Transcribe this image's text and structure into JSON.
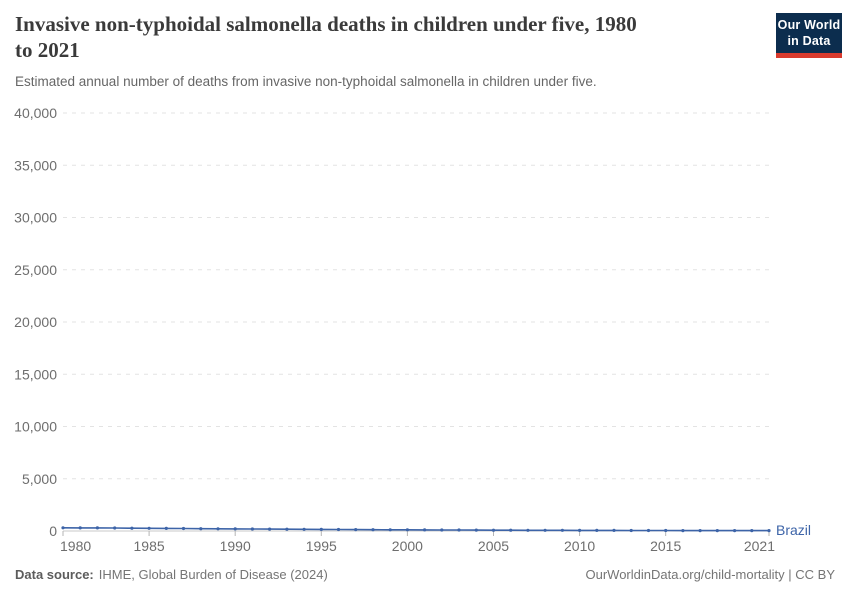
{
  "header": {
    "title_line1": "Invasive non-typhoidal salmonella deaths in children under five, 1980",
    "title_line2": "to 2021",
    "subtitle": "Estimated annual number of deaths from invasive non-typhoidal salmonella in children under five."
  },
  "logo": {
    "line1": "Our World",
    "line2": "in Data",
    "bg_color": "#0c2d4e",
    "stripe_color": "#d93a2d"
  },
  "footer": {
    "data_source_label": "Data source:",
    "data_source_value": "IHME, Global Burden of Disease (2024)",
    "credit": "OurWorldinData.org/child-mortality | CC BY"
  },
  "chart_data": {
    "type": "line",
    "title": "Invasive non-typhoidal salmonella deaths in children under five, 1980 to 2021",
    "subtitle": "Estimated annual number of deaths from invasive non-typhoidal salmonella in children under five.",
    "xlabel": "",
    "ylabel": "",
    "xlim": [
      1980,
      2021
    ],
    "ylim": [
      0,
      40000
    ],
    "yticks": [
      0,
      5000,
      10000,
      15000,
      20000,
      25000,
      30000,
      35000,
      40000
    ],
    "xticks": [
      1980,
      1985,
      1990,
      1995,
      2000,
      2005,
      2010,
      2015,
      2021
    ],
    "grid": "horizontal-dashed",
    "legend_position": "end-of-line",
    "colors": {
      "grid": "#e3e3e3",
      "zero_line": "#c9c9c9",
      "tick": "#b5b5b5",
      "axis_text": "#6e6e6e"
    },
    "series": [
      {
        "name": "Brazil",
        "color": "#3d64a8",
        "x": [
          1980,
          1981,
          1982,
          1983,
          1984,
          1985,
          1986,
          1987,
          1988,
          1989,
          1990,
          1991,
          1992,
          1993,
          1994,
          1995,
          1996,
          1997,
          1998,
          1999,
          2000,
          2001,
          2002,
          2003,
          2004,
          2005,
          2006,
          2007,
          2008,
          2009,
          2010,
          2011,
          2012,
          2013,
          2014,
          2015,
          2016,
          2017,
          2018,
          2019,
          2020,
          2021
        ],
        "values": [
          310,
          301,
          292,
          283,
          272,
          260,
          248,
          236,
          224,
          212,
          200,
          190,
          180,
          170,
          160,
          151,
          142,
          134,
          126,
          118,
          111,
          104,
          98,
          92,
          86,
          81,
          76,
          71,
          67,
          63,
          59,
          56,
          53,
          50,
          47,
          45,
          43,
          41,
          39,
          37,
          36,
          35
        ]
      }
    ]
  }
}
